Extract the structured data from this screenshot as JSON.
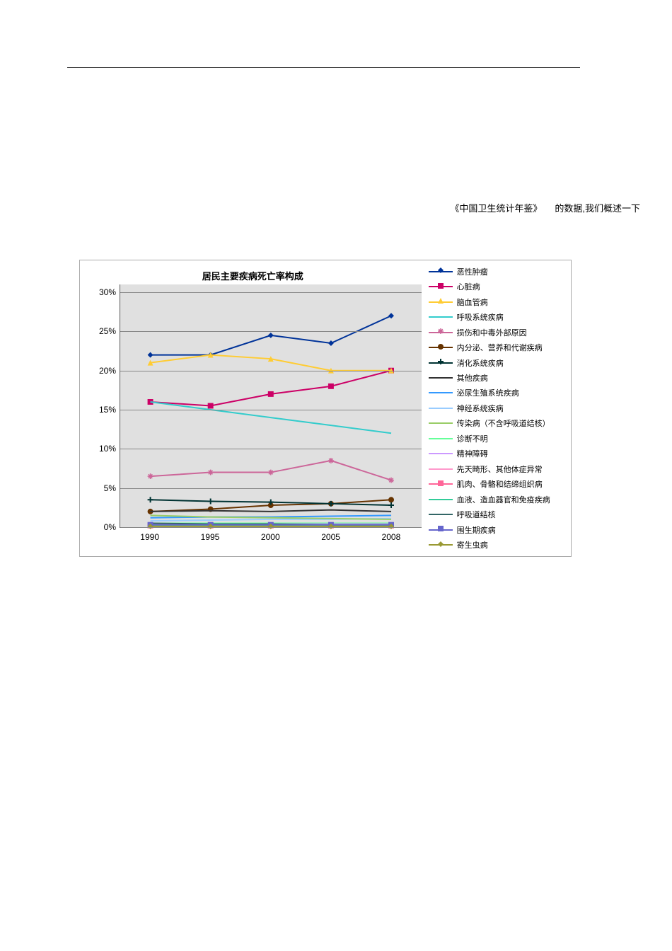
{
  "reference": {
    "part1": "《中国卫生统计年鉴》",
    "part2": "的数据,我们概述一下"
  },
  "chart": {
    "type": "line",
    "title": "居民主要疾病死亡率构成",
    "background_color": "#e0e0e0",
    "grid_color": "#888888",
    "x_categories": [
      "1990",
      "1995",
      "2000",
      "2005",
      "2008"
    ],
    "y_ticks": [
      0,
      5,
      10,
      15,
      20,
      25,
      30
    ],
    "y_suffix": "%",
    "ylim": [
      0,
      31
    ],
    "series": [
      {
        "name": "恶性肿瘤",
        "color": "#003399",
        "marker": "diamond",
        "values": [
          22,
          22,
          24.5,
          23.5,
          27
        ]
      },
      {
        "name": "心脏病",
        "color": "#cc0066",
        "marker": "square",
        "values": [
          16,
          15.5,
          17,
          18,
          20
        ]
      },
      {
        "name": "脑血管病",
        "color": "#ffcc33",
        "marker": "triangle",
        "values": [
          21,
          22,
          21.5,
          20,
          20
        ]
      },
      {
        "name": "呼吸系统疾病",
        "color": "#33cccc",
        "marker": "none",
        "values": [
          16,
          15,
          14,
          13,
          12
        ]
      },
      {
        "name": "损伤和中毒外部原因",
        "color": "#cc6699",
        "marker": "star",
        "values": [
          6.5,
          7,
          7,
          8.5,
          6
        ]
      },
      {
        "name": "内分泌、营养和代谢疾病",
        "color": "#663300",
        "marker": "circle",
        "values": [
          2,
          2.3,
          2.8,
          3,
          3.5
        ]
      },
      {
        "name": "消化系统疾病",
        "color": "#003333",
        "marker": "plus",
        "values": [
          3.5,
          3.3,
          3.2,
          3,
          2.8
        ]
      },
      {
        "name": "其他疾病",
        "color": "#333333",
        "marker": "none",
        "values": [
          2,
          2.1,
          2,
          2.2,
          2
        ]
      },
      {
        "name": "泌尿生殖系统疾病",
        "color": "#3399ff",
        "marker": "none",
        "values": [
          1.2,
          1.3,
          1.3,
          1.4,
          1.5
        ]
      },
      {
        "name": "神经系统疾病",
        "color": "#99ccff",
        "marker": "none",
        "values": [
          0.8,
          0.9,
          1,
          1,
          1.1
        ]
      },
      {
        "name": "传染病（不含呼吸道结核）",
        "color": "#99cc66",
        "marker": "none",
        "values": [
          1.5,
          1.3,
          1.2,
          1.1,
          1
        ]
      },
      {
        "name": "诊断不明",
        "color": "#66ff99",
        "marker": "none",
        "values": [
          0.5,
          0.5,
          0.5,
          0.5,
          0.5
        ]
      },
      {
        "name": "精神障碍",
        "color": "#cc99ff",
        "marker": "none",
        "values": [
          0.3,
          0.3,
          0.4,
          0.4,
          0.4
        ]
      },
      {
        "name": "先天畸形、其他体症异常",
        "color": "#ff99cc",
        "marker": "none",
        "values": [
          0.3,
          0.3,
          0.3,
          0.3,
          0.3
        ]
      },
      {
        "name": "肌肉、骨骼和结缔组织病",
        "color": "#ff6699",
        "marker": "square",
        "values": [
          0.2,
          0.2,
          0.2,
          0.2,
          0.2
        ]
      },
      {
        "name": "血液、造血器官和免疫疾病",
        "color": "#33cc99",
        "marker": "none",
        "values": [
          0.2,
          0.2,
          0.2,
          0.2,
          0.2
        ]
      },
      {
        "name": "呼吸道结核",
        "color": "#336666",
        "marker": "none",
        "values": [
          0.5,
          0.4,
          0.4,
          0.3,
          0.3
        ]
      },
      {
        "name": "围生期疾病",
        "color": "#6666cc",
        "marker": "square",
        "values": [
          0.3,
          0.3,
          0.3,
          0.3,
          0.3
        ]
      },
      {
        "name": "寄生虫病",
        "color": "#999933",
        "marker": "diamond",
        "values": [
          0.1,
          0.1,
          0.1,
          0.1,
          0.1
        ]
      }
    ]
  }
}
